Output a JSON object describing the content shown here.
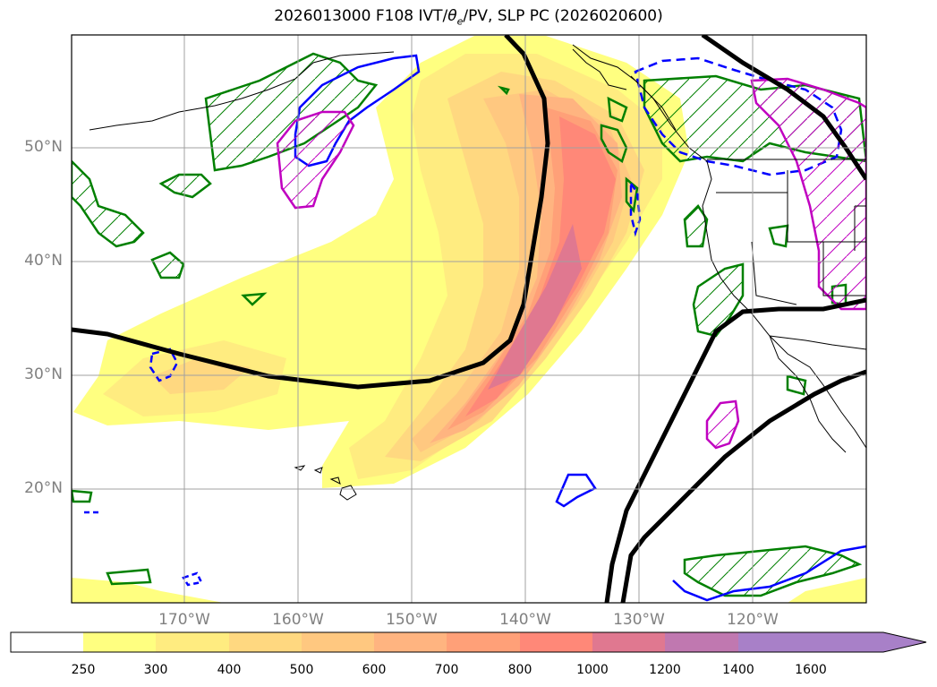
{
  "title_prefix": "2026013000 F108 IVT/",
  "title_theta": "θ",
  "title_sub": "e",
  "title_suffix": "/PV, SLP PC (2026020600)",
  "lat_labels": [
    "50°N",
    "40°N",
    "30°N",
    "20°N"
  ],
  "lon_labels": [
    "170°W",
    "160°W",
    "150°W",
    "140°W",
    "130°W",
    "120°W"
  ],
  "colorbar": {
    "ticks": [
      "250",
      "300",
      "400",
      "500",
      "600",
      "700",
      "800",
      "1000",
      "1200",
      "1400",
      "1600"
    ],
    "colors": [
      "#ffffff",
      "#ffff80",
      "#ffec80",
      "#ffd880",
      "#ffc880",
      "#ffb480",
      "#ffa078",
      "#ff8878",
      "#e07890",
      "#c078b0",
      "#a880c8"
    ]
  },
  "contour_colors": {
    "slp": "#000000",
    "pv_positive": "#008000",
    "pv_negative": "#0000ff",
    "theta_e": "#c000c0"
  }
}
